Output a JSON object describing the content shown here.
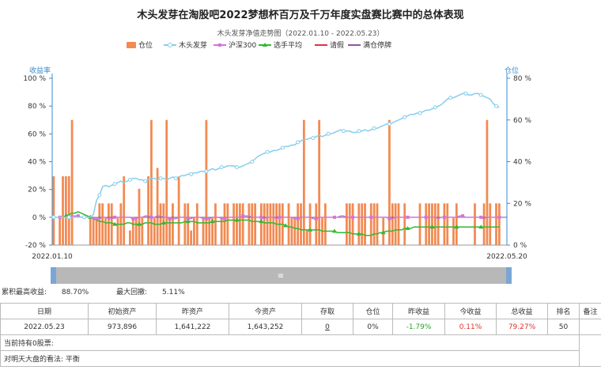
{
  "page": {
    "title": "木头发芽在淘股吧2022梦想杯百万及千万年度实盘赛比赛中的总体表现"
  },
  "stats": {
    "max_return_label": "累积最高收益:",
    "max_return_value": "88.70%",
    "max_drawdown_label": "最大回撤:",
    "max_drawdown_value": "5.11%"
  },
  "slider": {
    "handle_label": "≡"
  },
  "table": {
    "headers": [
      "日期",
      "初始资产",
      "昨资产",
      "今资产",
      "存取",
      "仓位",
      "昨收益",
      "今收益",
      "总收益",
      "排名",
      "备注"
    ],
    "row": {
      "date": "2022.05.23",
      "initial": "973,896",
      "yesterday": "1,641,222",
      "today": "1,643,252",
      "deposit": "0",
      "position": "0%",
      "yesterday_return": "-1.79%",
      "today_return": "0.11%",
      "total_return": "79.27%",
      "rank": "50",
      "note": ""
    },
    "holdings": "当前持有0股票:",
    "outlook": "对明天大盘的看法: 平衡"
  },
  "chart_data": {
    "type": "bar",
    "subtitle": "木头发芽净值走势图（2022.01.10 - 2022.05.23）",
    "left_axis_label": "收益率",
    "right_axis_label": "仓位",
    "left_ylim": [
      -20,
      100
    ],
    "left_ticks": [
      "100 %",
      "80 %",
      "60 %",
      "40 %",
      "20 %",
      "0 %",
      "-20 %"
    ],
    "right_ylim": [
      0,
      80
    ],
    "right_ticks": [
      "80 %",
      "60 %",
      "40 %",
      "20 %",
      "0 %"
    ],
    "x_start_label": "2022.01.10",
    "x_end_label": "2022.05.20",
    "grid": false,
    "legend_placement": "top",
    "legend": [
      {
        "name": "仓位",
        "color": "#f28a52"
      },
      {
        "name": "木头发芽",
        "color": "#87ceeb"
      },
      {
        "name": "沪深300",
        "color": "#d673d6"
      },
      {
        "name": "选手平均",
        "color": "#33b833"
      },
      {
        "name": "请假",
        "color": "#e0304a"
      },
      {
        "name": "满仓停牌",
        "color": "#9b4fa8"
      }
    ],
    "position": [
      33,
      0,
      13,
      33,
      33,
      33,
      60,
      0,
      0,
      0,
      0,
      0,
      13,
      13,
      13,
      20,
      20,
      13,
      20,
      20,
      0,
      13,
      20,
      33,
      0,
      7,
      13,
      13,
      27,
      13,
      0,
      33,
      60,
      13,
      37,
      20,
      20,
      60,
      13,
      20,
      0,
      33,
      0,
      20,
      20,
      7,
      13,
      20,
      0,
      13,
      60,
      13,
      13,
      20,
      0,
      13,
      20,
      20,
      0,
      20,
      20,
      20,
      20,
      0,
      20,
      20,
      20,
      0,
      20,
      20,
      20,
      20,
      20,
      20,
      20,
      20,
      0,
      20,
      13,
      13,
      20,
      20,
      60,
      7,
      20,
      0,
      20,
      60,
      13,
      20,
      0,
      0,
      0,
      0,
      0,
      0,
      20,
      20,
      20,
      0,
      20,
      20,
      20,
      0,
      20,
      20,
      20,
      0,
      13,
      0,
      60,
      20,
      20,
      20,
      0,
      20,
      0,
      0,
      0,
      0,
      20,
      0,
      20,
      20,
      20,
      20,
      20,
      0,
      20,
      20,
      0,
      13,
      20,
      0,
      0,
      0,
      0,
      0,
      20,
      0,
      0,
      20,
      60,
      20,
      0,
      20,
      20,
      0,
      0
    ],
    "mutou": [
      0,
      0,
      0,
      0,
      0,
      0,
      0,
      0,
      0,
      0,
      0,
      0,
      0,
      2,
      12,
      16,
      22,
      23,
      22,
      23,
      24,
      25,
      26,
      25,
      26,
      27,
      28,
      28,
      27,
      27,
      26,
      27,
      28,
      28,
      27,
      28,
      28,
      27,
      28,
      29,
      28,
      29,
      30,
      30,
      31,
      31,
      32,
      32,
      33,
      33,
      33,
      34,
      35,
      34,
      35,
      36,
      36,
      37,
      37,
      37,
      36,
      36,
      37,
      38,
      39,
      40,
      42,
      44,
      45,
      46,
      47,
      47,
      48,
      48,
      49,
      50,
      51,
      51,
      52,
      52,
      54,
      55,
      56,
      56,
      57,
      57,
      58,
      59,
      58,
      59,
      60,
      60,
      61,
      62,
      63,
      62,
      62,
      62,
      61,
      61,
      62,
      62,
      63,
      62,
      63,
      64,
      64,
      65,
      66,
      67,
      67,
      68,
      69,
      70,
      71,
      72,
      73,
      74,
      74,
      75,
      75,
      76,
      77,
      77,
      78,
      79,
      80,
      81,
      83,
      85,
      86,
      86,
      87,
      88,
      89,
      89,
      88,
      88,
      89,
      89,
      88,
      87,
      86,
      85,
      82,
      80,
      79
    ],
    "hs300": [
      0,
      0,
      0,
      0,
      0,
      1,
      1,
      1,
      1,
      0,
      0,
      0,
      0,
      -1,
      -1,
      -1,
      0,
      0,
      -1,
      -1,
      0,
      0,
      0,
      0,
      0,
      0,
      -1,
      -1,
      0,
      0,
      1,
      1,
      0,
      0,
      1,
      1,
      0,
      0,
      -1,
      -1,
      -1,
      0,
      0,
      0,
      -1,
      -1,
      0,
      0,
      0,
      -1,
      -1,
      -1,
      0,
      0,
      0,
      -1,
      -1,
      0,
      0,
      0,
      0,
      0,
      1,
      1,
      1,
      0,
      0,
      0,
      0,
      -1,
      0,
      0,
      0,
      -1,
      0,
      0,
      0,
      0,
      0,
      -1,
      -1,
      0,
      0,
      0,
      0,
      -1,
      -1,
      0,
      0,
      0,
      0,
      0,
      0,
      0,
      1,
      1,
      0,
      0,
      0,
      0,
      0,
      0,
      0,
      0,
      0,
      0,
      0,
      0,
      0,
      0,
      -1,
      -1,
      0,
      0,
      0,
      0,
      0,
      0,
      0,
      0,
      0,
      0,
      0,
      0,
      0,
      0,
      -1,
      0,
      0,
      0,
      0,
      0,
      0,
      1,
      1,
      0,
      0,
      0,
      0,
      0,
      0,
      -1,
      0,
      0,
      0,
      0,
      0,
      0
    ],
    "avg": [
      0,
      0,
      0,
      0,
      1,
      2,
      3,
      3,
      4,
      3,
      2,
      1,
      0,
      -1,
      -2,
      -3,
      -3,
      -4,
      -4,
      -4,
      -5,
      -5,
      -5,
      -5,
      -4,
      -4,
      -5,
      -5,
      -5,
      -5,
      -4,
      -4,
      -4,
      -5,
      -5,
      -5,
      -4,
      -4,
      -4,
      -4,
      -4,
      -4,
      -4,
      -3,
      -3,
      -3,
      -3,
      -4,
      -4,
      -4,
      -4,
      -4,
      -3,
      -3,
      -3,
      -3,
      -3,
      -2,
      -2,
      -2,
      -2,
      -2,
      -2,
      -2,
      -2,
      -3,
      -3,
      -3,
      -3,
      -4,
      -4,
      -4,
      -4,
      -5,
      -5,
      -5,
      -6,
      -7,
      -7,
      -8,
      -8,
      -9,
      -9,
      -9,
      -9,
      -9,
      -9,
      -9,
      -10,
      -10,
      -10,
      -10,
      -10,
      -11,
      -11,
      -11,
      -11,
      -11,
      -12,
      -12,
      -12,
      -12,
      -13,
      -13,
      -13,
      -12,
      -12,
      -11,
      -11,
      -10,
      -10,
      -10,
      -9,
      -9,
      -9,
      -8,
      -8,
      -8,
      -7,
      -7,
      -7,
      -7,
      -7,
      -7,
      -7,
      -7,
      -7,
      -7,
      -7,
      -7,
      -7,
      -7,
      -7,
      -7,
      -7,
      -7,
      -7,
      -7,
      -7,
      -7,
      -7,
      -7,
      -7,
      -7,
      -7,
      -7,
      -7
    ]
  }
}
